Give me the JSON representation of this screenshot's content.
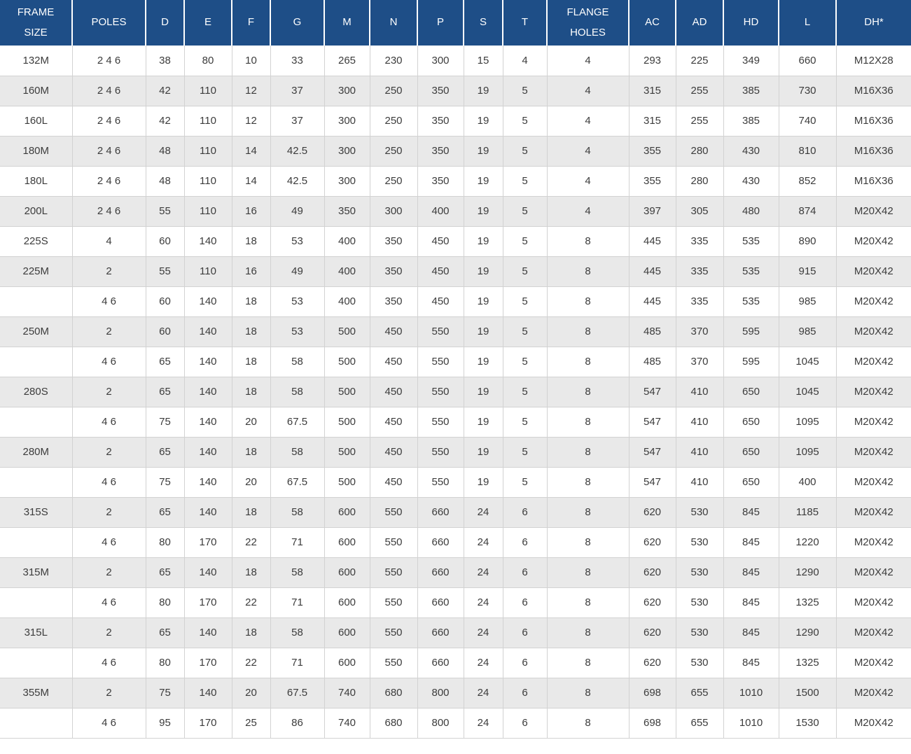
{
  "colors": {
    "header_bg": "#1e4e87",
    "header_text": "#ffffff",
    "row_bg": "#ffffff",
    "row_alt_bg": "#e9e9e9",
    "border": "#d2d2d2",
    "body_text": "#3c3c3c"
  },
  "chart_data": {
    "type": "table",
    "title": "Motor frame dimension specification table",
    "column_keys": [
      "frame-size",
      "poles",
      "d",
      "e",
      "f",
      "g",
      "m",
      "n",
      "p",
      "s",
      "t",
      "flange-holes",
      "ac",
      "ad",
      "hd",
      "l",
      "dh"
    ],
    "columns": [
      "FRAME SIZE",
      "POLES",
      "D",
      "E",
      "F",
      "G",
      "M",
      "N",
      "P",
      "S",
      "T",
      "FLANGE HOLES",
      "AC",
      "AD",
      "HD",
      "L",
      "DH*"
    ],
    "rows": [
      [
        "132M",
        "2 4 6",
        "38",
        "80",
        "10",
        "33",
        "265",
        "230",
        "300",
        "15",
        "4",
        "4",
        "293",
        "225",
        "349",
        "660",
        "M12X28"
      ],
      [
        "160M",
        "2 4 6",
        "42",
        "110",
        "12",
        "37",
        "300",
        "250",
        "350",
        "19",
        "5",
        "4",
        "315",
        "255",
        "385",
        "730",
        "M16X36"
      ],
      [
        "160L",
        "2 4 6",
        "42",
        "110",
        "12",
        "37",
        "300",
        "250",
        "350",
        "19",
        "5",
        "4",
        "315",
        "255",
        "385",
        "740",
        "M16X36"
      ],
      [
        "180M",
        "2 4 6",
        "48",
        "110",
        "14",
        "42.5",
        "300",
        "250",
        "350",
        "19",
        "5",
        "4",
        "355",
        "280",
        "430",
        "810",
        "M16X36"
      ],
      [
        "180L",
        "2 4 6",
        "48",
        "110",
        "14",
        "42.5",
        "300",
        "250",
        "350",
        "19",
        "5",
        "4",
        "355",
        "280",
        "430",
        "852",
        "M16X36"
      ],
      [
        "200L",
        "2 4 6",
        "55",
        "110",
        "16",
        "49",
        "350",
        "300",
        "400",
        "19",
        "5",
        "4",
        "397",
        "305",
        "480",
        "874",
        "M20X42"
      ],
      [
        "225S",
        "4",
        "60",
        "140",
        "18",
        "53",
        "400",
        "350",
        "450",
        "19",
        "5",
        "8",
        "445",
        "335",
        "535",
        "890",
        "M20X42"
      ],
      [
        "225M",
        "2",
        "55",
        "110",
        "16",
        "49",
        "400",
        "350",
        "450",
        "19",
        "5",
        "8",
        "445",
        "335",
        "535",
        "915",
        "M20X42"
      ],
      [
        "",
        "4 6",
        "60",
        "140",
        "18",
        "53",
        "400",
        "350",
        "450",
        "19",
        "5",
        "8",
        "445",
        "335",
        "535",
        "985",
        "M20X42"
      ],
      [
        "250M",
        "2",
        "60",
        "140",
        "18",
        "53",
        "500",
        "450",
        "550",
        "19",
        "5",
        "8",
        "485",
        "370",
        "595",
        "985",
        "M20X42"
      ],
      [
        "",
        "4 6",
        "65",
        "140",
        "18",
        "58",
        "500",
        "450",
        "550",
        "19",
        "5",
        "8",
        "485",
        "370",
        "595",
        "1045",
        "M20X42"
      ],
      [
        "280S",
        "2",
        "65",
        "140",
        "18",
        "58",
        "500",
        "450",
        "550",
        "19",
        "5",
        "8",
        "547",
        "410",
        "650",
        "1045",
        "M20X42"
      ],
      [
        "",
        "4 6",
        "75",
        "140",
        "20",
        "67.5",
        "500",
        "450",
        "550",
        "19",
        "5",
        "8",
        "547",
        "410",
        "650",
        "1095",
        "M20X42"
      ],
      [
        "280M",
        "2",
        "65",
        "140",
        "18",
        "58",
        "500",
        "450",
        "550",
        "19",
        "5",
        "8",
        "547",
        "410",
        "650",
        "1095",
        "M20X42"
      ],
      [
        "",
        "4 6",
        "75",
        "140",
        "20",
        "67.5",
        "500",
        "450",
        "550",
        "19",
        "5",
        "8",
        "547",
        "410",
        "650",
        "400",
        "M20X42"
      ],
      [
        "315S",
        "2",
        "65",
        "140",
        "18",
        "58",
        "600",
        "550",
        "660",
        "24",
        "6",
        "8",
        "620",
        "530",
        "845",
        "1185",
        "M20X42"
      ],
      [
        "",
        "4 6",
        "80",
        "170",
        "22",
        "71",
        "600",
        "550",
        "660",
        "24",
        "6",
        "8",
        "620",
        "530",
        "845",
        "1220",
        "M20X42"
      ],
      [
        "315M",
        "2",
        "65",
        "140",
        "18",
        "58",
        "600",
        "550",
        "660",
        "24",
        "6",
        "8",
        "620",
        "530",
        "845",
        "1290",
        "M20X42"
      ],
      [
        "",
        "4 6",
        "80",
        "170",
        "22",
        "71",
        "600",
        "550",
        "660",
        "24",
        "6",
        "8",
        "620",
        "530",
        "845",
        "1325",
        "M20X42"
      ],
      [
        "315L",
        "2",
        "65",
        "140",
        "18",
        "58",
        "600",
        "550",
        "660",
        "24",
        "6",
        "8",
        "620",
        "530",
        "845",
        "1290",
        "M20X42"
      ],
      [
        "",
        "4 6",
        "80",
        "170",
        "22",
        "71",
        "600",
        "550",
        "660",
        "24",
        "6",
        "8",
        "620",
        "530",
        "845",
        "1325",
        "M20X42"
      ],
      [
        "355M",
        "2",
        "75",
        "140",
        "20",
        "67.5",
        "740",
        "680",
        "800",
        "24",
        "6",
        "8",
        "698",
        "655",
        "1010",
        "1500",
        "M20X42"
      ],
      [
        "",
        "4 6",
        "95",
        "170",
        "25",
        "86",
        "740",
        "680",
        "800",
        "24",
        "6",
        "8",
        "698",
        "655",
        "1010",
        "1530",
        "M20X42"
      ]
    ]
  }
}
